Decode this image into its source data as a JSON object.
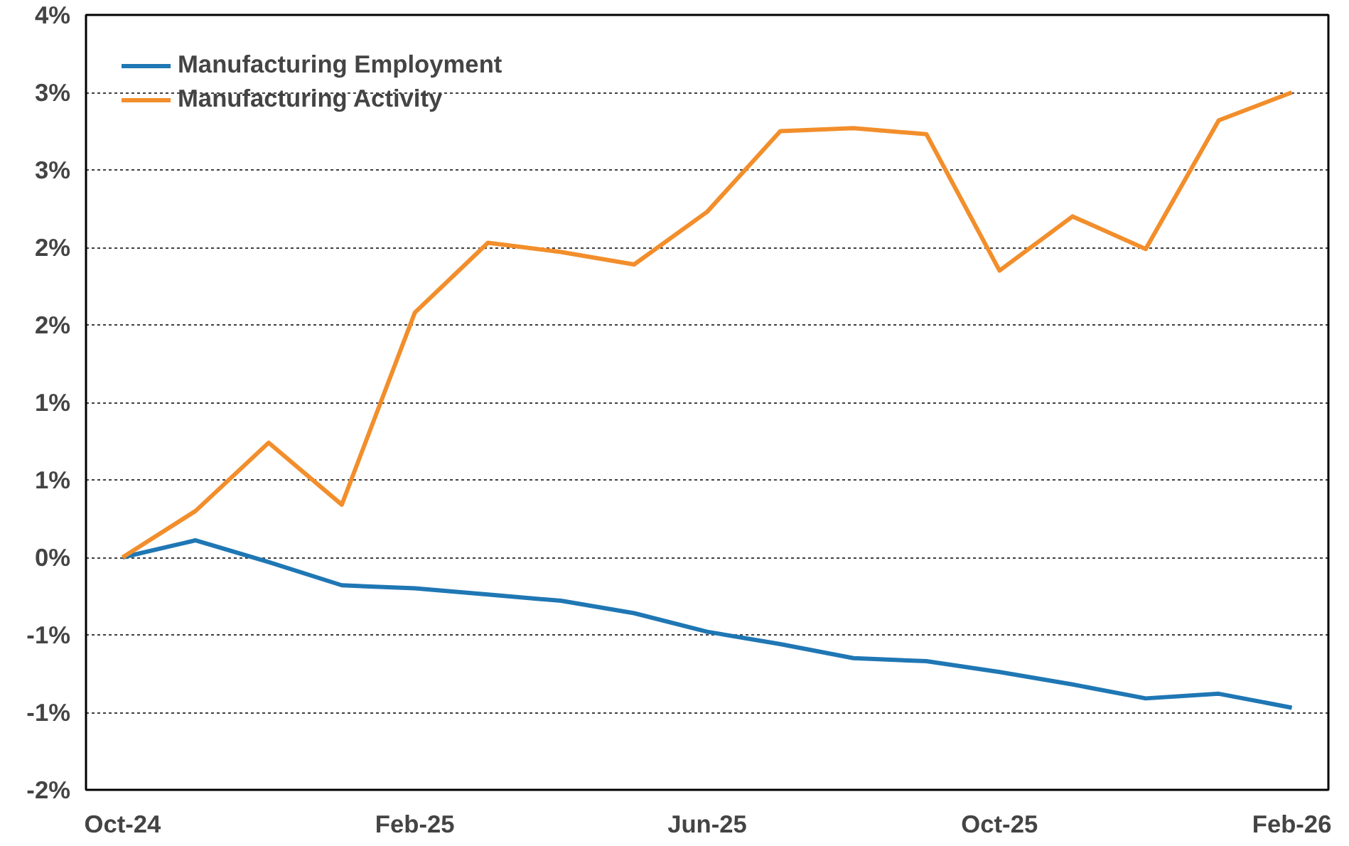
{
  "chart_data": {
    "type": "line",
    "categories": [
      "Oct-24",
      null,
      null,
      null,
      "Feb-25",
      null,
      null,
      null,
      "Jun-25",
      null,
      null,
      null,
      "Oct-25",
      null,
      null,
      null,
      "Feb-26"
    ],
    "series": [
      {
        "name": "Manufacturing Employment",
        "color": "#1f77b4",
        "values": [
          0,
          0.11,
          -0.03,
          -0.18,
          -0.2,
          -0.24,
          -0.28,
          -0.36,
          -0.48,
          -0.56,
          -0.65,
          -0.67,
          -0.74,
          -0.82,
          -0.91,
          -0.88,
          -0.97
        ]
      },
      {
        "name": "Manufacturing Activity",
        "color": "#f28e2b",
        "values": [
          0,
          0.3,
          0.74,
          0.34,
          1.58,
          2.03,
          1.97,
          1.89,
          2.23,
          2.75,
          2.77,
          2.73,
          1.85,
          2.2,
          1.99,
          2.82,
          3.0
        ]
      }
    ],
    "ylim": [
      -1.5,
      3.5
    ],
    "yticks": [
      {
        "value": -1.5,
        "label": "-2%"
      },
      {
        "value": -1,
        "label": "-1%"
      },
      {
        "value": -0.5,
        "label": "-1%"
      },
      {
        "value": 0,
        "label": "0%"
      },
      {
        "value": 0.5,
        "label": "1%"
      },
      {
        "value": 1,
        "label": "1%"
      },
      {
        "value": 1.5,
        "label": "2%"
      },
      {
        "value": 2,
        "label": "2%"
      },
      {
        "value": 2.5,
        "label": "3%"
      },
      {
        "value": 3,
        "label": "3%"
      },
      {
        "value": 3.5,
        "label": "4%"
      }
    ],
    "grid": "y",
    "legend": "top left",
    "marker": "none",
    "line_style": "solid"
  }
}
